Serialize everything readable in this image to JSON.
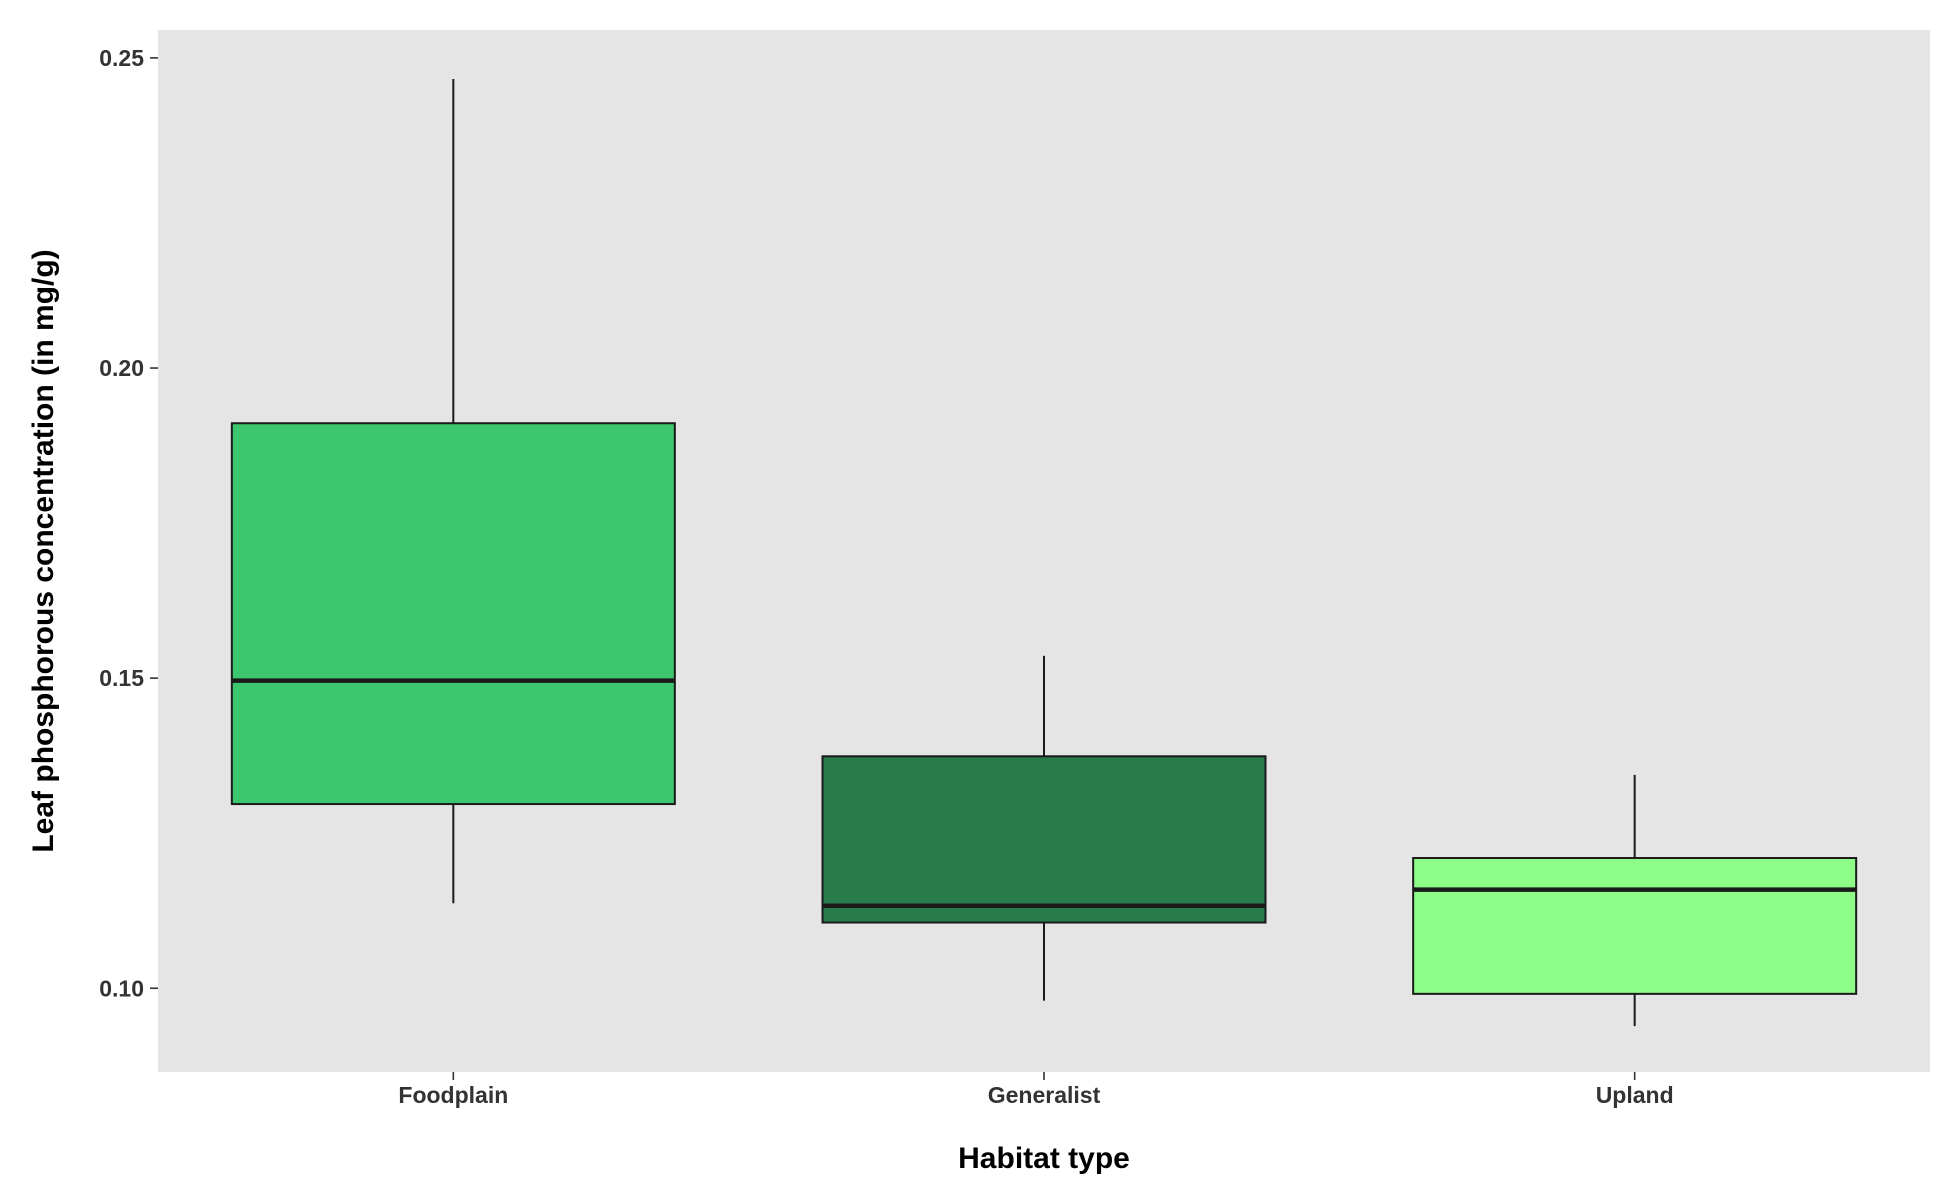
{
  "chart_data": {
    "type": "boxplot",
    "title": "",
    "xlabel": "Habitat type",
    "ylabel": "Leaf phosphorous concentration (in mg/g)",
    "ylim": [
      0.0865,
      0.2545
    ],
    "y_ticks": [
      0.1,
      0.15,
      0.2,
      0.25
    ],
    "y_tick_labels": [
      "0.10",
      "0.15",
      "0.20",
      "0.25"
    ],
    "grid": false,
    "legend": "none",
    "panel_color": "#e5e5e5",
    "categories": [
      "Foodplain",
      "Generalist",
      "Upland"
    ],
    "boxes": [
      {
        "category": "Foodplain",
        "min": 0.1137,
        "q1": 0.1297,
        "median": 0.1496,
        "q3": 0.1911,
        "max": 0.2466,
        "color": "#3cc66d"
      },
      {
        "category": "Generalist",
        "min": 0.098,
        "q1": 0.1106,
        "median": 0.1133,
        "q3": 0.1374,
        "max": 0.1536,
        "color": "#277c4a"
      },
      {
        "category": "Upland",
        "min": 0.0939,
        "q1": 0.0991,
        "median": 0.1159,
        "q3": 0.121,
        "max": 0.1344,
        "color": "#8dfd88"
      }
    ]
  }
}
